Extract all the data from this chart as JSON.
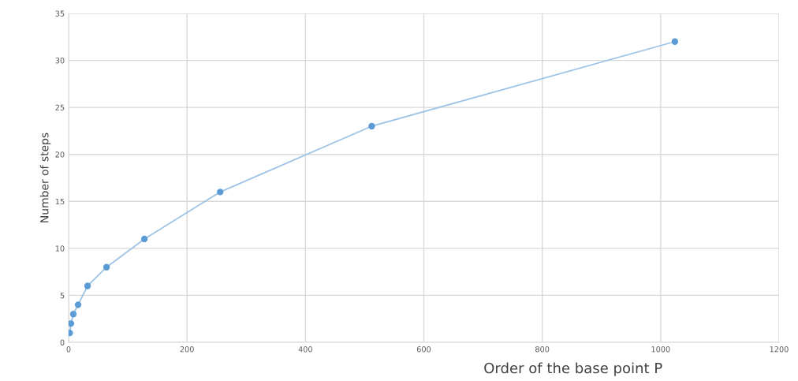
{
  "chart_data": {
    "type": "line",
    "xlabel": "Order of the base point P",
    "ylabel": "Number of steps",
    "x": [
      2,
      4,
      8,
      16,
      32,
      64,
      128,
      256,
      512,
      1024
    ],
    "series": [
      {
        "color": "#5b9bd5",
        "values": [
          1,
          2,
          3,
          4,
          6,
          8,
          11,
          16,
          23,
          32
        ]
      }
    ],
    "xlim": [
      0,
      1200
    ],
    "xticks": [
      0,
      200,
      400,
      600,
      800,
      1000,
      1200
    ],
    "ylim": [
      0,
      35
    ],
    "yticks": [
      0,
      5,
      10,
      15,
      20,
      25,
      30,
      35
    ],
    "grid": true,
    "marker": "circle",
    "line_style": "solid"
  }
}
